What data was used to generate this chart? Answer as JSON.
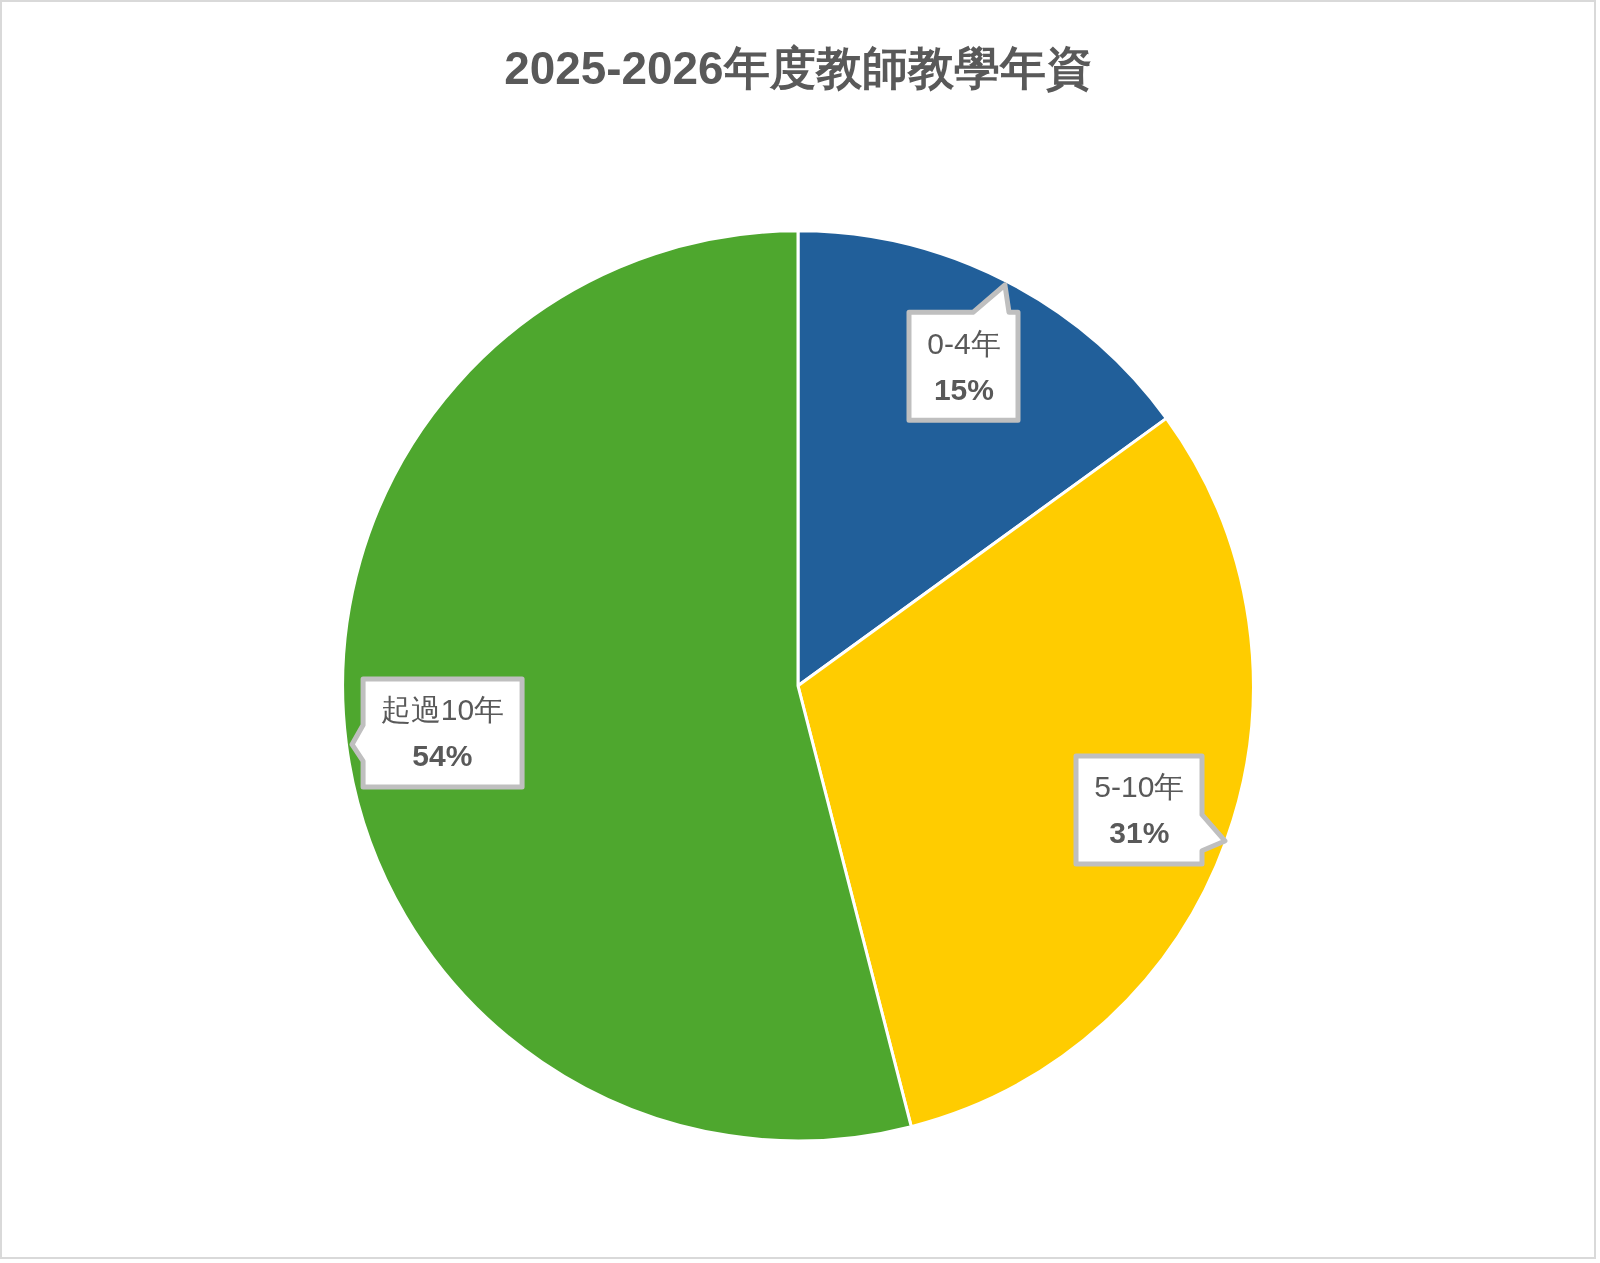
{
  "chart_data": {
    "type": "pie",
    "title": "2025-2026年度教師教學年資",
    "categories": [
      "0-4年",
      "5-10年",
      "起過10年"
    ],
    "values": [
      15,
      31,
      54
    ],
    "value_labels": [
      "15%",
      "31%",
      "54%"
    ],
    "colors": [
      "#215f9a",
      "#ffcc00",
      "#4ea72e"
    ],
    "legend": false
  }
}
